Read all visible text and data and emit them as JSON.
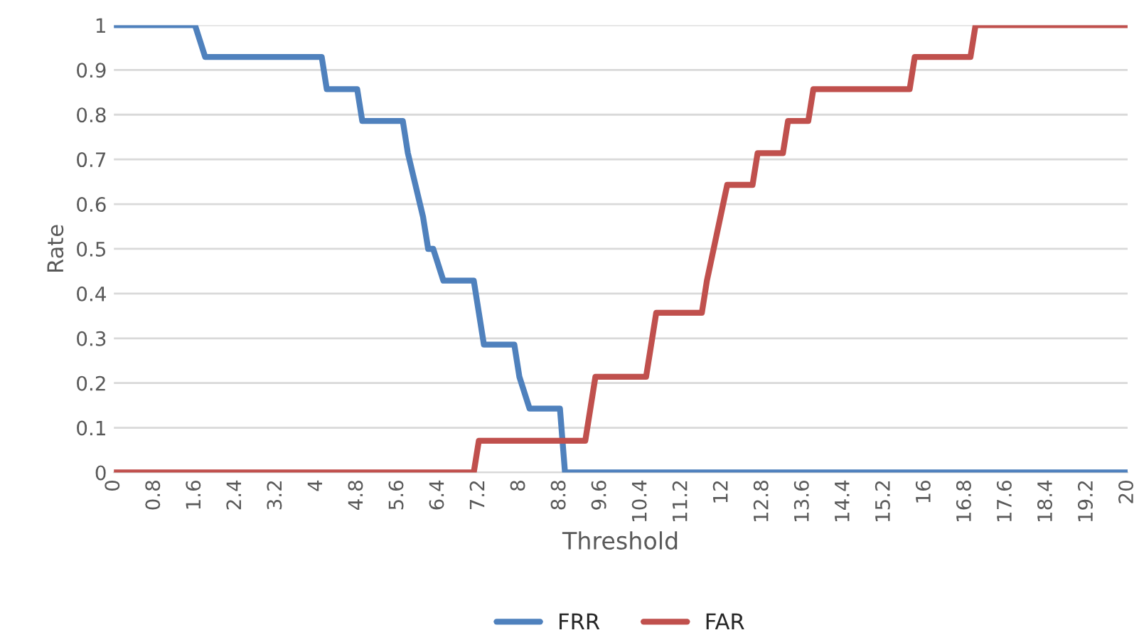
{
  "chart_data": {
    "type": "line",
    "xlabel": "Threshold",
    "ylabel": "Rate",
    "xlim": [
      0,
      20
    ],
    "xticks": [
      0,
      0.8,
      1.6,
      2.4,
      3.2,
      4,
      4.8,
      5.6,
      6.4,
      7.2,
      8,
      8.8,
      9.6,
      10.4,
      11.2,
      12,
      12.8,
      13.6,
      14.4,
      15.2,
      16,
      16.8,
      17.6,
      18.4,
      19.2,
      20
    ],
    "ylim": [
      0,
      1
    ],
    "yticks": [
      0,
      0.1,
      0.2,
      0.3,
      0.4,
      0.5,
      0.6,
      0.7,
      0.8,
      0.9,
      1
    ],
    "grid": "y",
    "legend": "bottom",
    "marker": "none",
    "line_style": "solid",
    "series": [
      {
        "name": "FRR",
        "color": "#4f81bd",
        "x": [
          0,
          1.6,
          1.8,
          4.1,
          4.2,
          4.8,
          4.9,
          5.7,
          5.8,
          6.1,
          6.2,
          6.3,
          6.5,
          7.1,
          7.3,
          7.9,
          8.0,
          8.2,
          8.8,
          8.9,
          20
        ],
        "values": [
          1,
          1,
          0.929,
          0.929,
          0.857,
          0.857,
          0.786,
          0.786,
          0.714,
          0.571,
          0.5,
          0.5,
          0.429,
          0.429,
          0.286,
          0.286,
          0.214,
          0.143,
          0.143,
          0,
          0
        ]
      },
      {
        "name": "FAR",
        "color": "#c0504d",
        "x": [
          0,
          7.1,
          7.2,
          9.3,
          9.5,
          10.5,
          10.7,
          11.6,
          11.7,
          12.1,
          12.6,
          12.7,
          13.2,
          13.3,
          13.7,
          13.8,
          15.7,
          15.8,
          16.9,
          17.0,
          20
        ],
        "values": [
          0,
          0,
          0.071,
          0.071,
          0.214,
          0.214,
          0.357,
          0.357,
          0.429,
          0.643,
          0.643,
          0.714,
          0.714,
          0.786,
          0.786,
          0.857,
          0.857,
          0.929,
          0.929,
          1,
          1
        ]
      }
    ]
  }
}
